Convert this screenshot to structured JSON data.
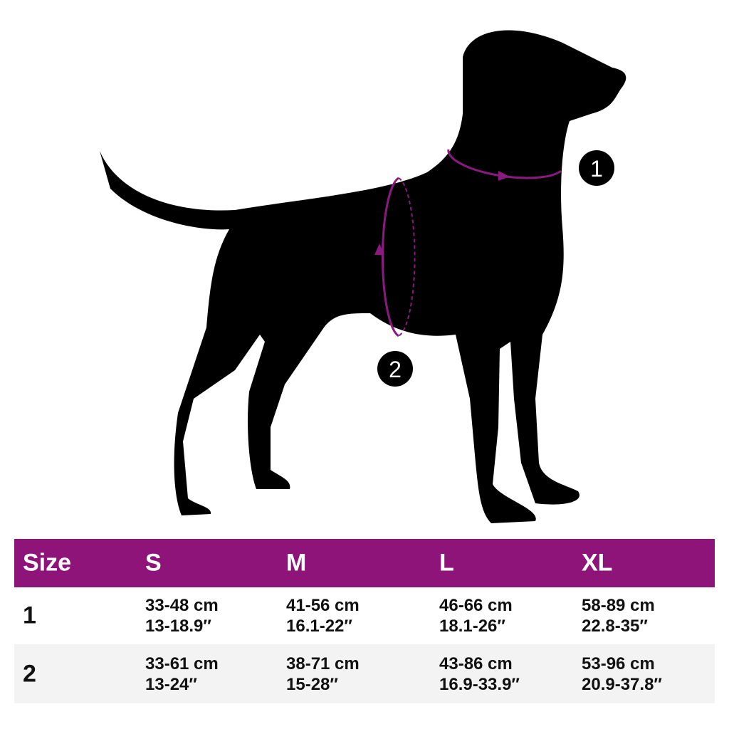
{
  "colors": {
    "accent": "#8e1479",
    "ring": "#8b1a7f",
    "silhouette": "#000000",
    "alt_row": "#f3f3f3"
  },
  "markers": [
    {
      "label": "1",
      "meaning": "neck"
    },
    {
      "label": "2",
      "meaning": "chest"
    }
  ],
  "table": {
    "headers": [
      "Size",
      "S",
      "M",
      "L",
      "XL"
    ],
    "rows": [
      {
        "label": "1",
        "cells": [
          [
            "33-48 cm",
            "13-18.9″"
          ],
          [
            "41-56 cm",
            "16.1-22″"
          ],
          [
            "46-66 cm",
            "18.1-26″"
          ],
          [
            "58-89 cm",
            "22.8-35″"
          ]
        ]
      },
      {
        "label": "2",
        "cells": [
          [
            "33-61 cm",
            "13-24″"
          ],
          [
            "38-71 cm",
            "15-28″"
          ],
          [
            "43-86 cm",
            "16.9-33.9″"
          ],
          [
            "53-96 cm",
            "20.9-37.8″"
          ]
        ]
      }
    ]
  }
}
